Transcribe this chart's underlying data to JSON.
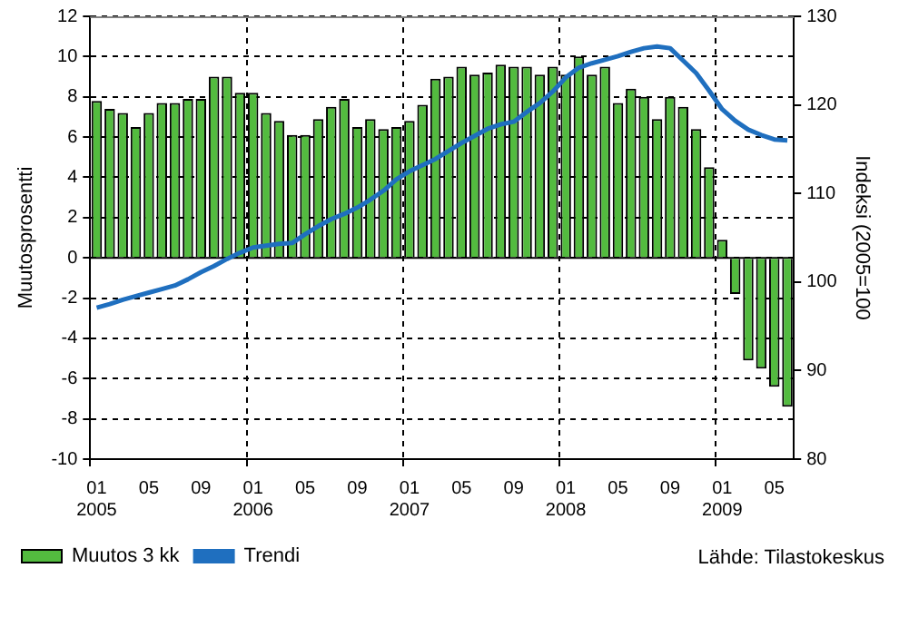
{
  "chart_data": {
    "type": "bar",
    "ylabel": "Muutosprosentti",
    "y2label": "Indeksi (2005=100",
    "categories": [
      "01\n2005",
      null,
      null,
      null,
      "05",
      null,
      null,
      null,
      "09",
      null,
      null,
      null,
      "01\n2006",
      null,
      null,
      null,
      "05",
      null,
      null,
      null,
      "09",
      null,
      null,
      null,
      "01\n2007",
      null,
      null,
      null,
      "05",
      null,
      null,
      null,
      "09",
      null,
      null,
      null,
      "01\n2008",
      null,
      null,
      null,
      "05",
      null,
      null,
      null,
      "09",
      null,
      null,
      null,
      "01\n2009",
      null,
      null,
      null,
      "05",
      null
    ],
    "series": [
      {
        "name": "Muutos 3 kk",
        "color": "#53bb3f",
        "values": [
          7.8,
          7.4,
          7.2,
          6.5,
          7.2,
          7.7,
          7.7,
          7.9,
          7.9,
          9.0,
          9.0,
          8.2,
          8.2,
          7.2,
          6.8,
          6.1,
          6.1,
          6.9,
          7.5,
          7.9,
          6.5,
          6.9,
          6.4,
          6.5,
          6.8,
          7.6,
          8.9,
          9.0,
          9.5,
          9.1,
          9.2,
          9.6,
          9.5,
          9.5,
          9.1,
          9.5,
          9.1,
          10.0,
          9.1,
          9.5,
          7.7,
          8.4,
          8.0,
          6.9,
          8.0,
          7.5,
          6.4,
          4.5,
          0.9,
          -1.8,
          -5.1,
          -5.5,
          -6.4,
          -7.4
        ]
      },
      {
        "name": "Trendi",
        "type": "line",
        "axis": "y2",
        "color": "#1f6fbf",
        "values": [
          97.1,
          97.5,
          98.0,
          98.4,
          98.8,
          99.2,
          99.6,
          100.3,
          101.1,
          101.8,
          102.6,
          103.3,
          103.9,
          104.1,
          104.3,
          104.4,
          105.4,
          106.3,
          107.1,
          107.7,
          108.4,
          109.3,
          110.3,
          111.6,
          112.5,
          113.2,
          113.9,
          114.8,
          115.7,
          116.5,
          117.3,
          117.8,
          118.1,
          119.2,
          120.2,
          121.5,
          123.1,
          124.2,
          124.7,
          125.1,
          125.5,
          126.0,
          126.4,
          126.6,
          126.4,
          125.0,
          123.6,
          121.6,
          119.5,
          118.2,
          117.2,
          116.6,
          116.1,
          116.0
        ]
      }
    ],
    "ylim": [
      -10,
      12
    ],
    "yticks": [
      -10,
      -8,
      -6,
      -4,
      -2,
      0,
      2,
      4,
      6,
      8,
      10,
      12
    ],
    "y2lim": [
      80,
      130
    ],
    "y2ticks": [
      80,
      90,
      100,
      110,
      120,
      130
    ],
    "grid": true,
    "legend": "bottom",
    "marker": "none",
    "line_style": "solid",
    "annotations": [
      "Lähde: Tilastokeskus"
    ]
  }
}
